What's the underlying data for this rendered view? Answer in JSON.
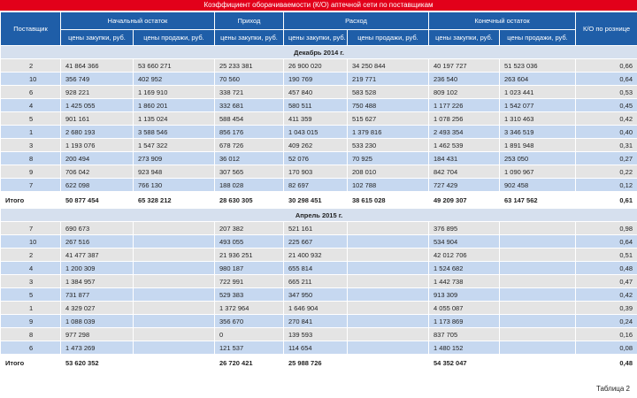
{
  "title": "Коэффициент оборачиваемости (К/О) аптечной сети по поставщикам",
  "header": {
    "groups": [
      "Поставщик",
      "Начальный остаток",
      "Приход",
      "Расход",
      "Конечный остаток",
      "К/О по рознице"
    ],
    "subheaders": [
      "цены закупки, руб.",
      "цены продажи, руб.",
      "цены закупки, руб.",
      "цены закупки, руб.",
      "цены продажи, руб.",
      "цены закупки, руб.",
      "цены продажи, руб."
    ]
  },
  "sections": [
    {
      "label": "Декабрь 2014 г.",
      "rows": [
        [
          "2",
          "41 864 366",
          "53 660 271",
          "25 233 381",
          "26 900 020",
          "34 250 844",
          "40 197 727",
          "51 523 036",
          "0,66"
        ],
        [
          "10",
          "356 749",
          "402 952",
          "70 560",
          "190 769",
          "219 771",
          "236 540",
          "263 604",
          "0,64"
        ],
        [
          "6",
          "928 221",
          "1 169 910",
          "338 721",
          "457 840",
          "583 528",
          "809 102",
          "1 023 441",
          "0,53"
        ],
        [
          "4",
          "1 425 055",
          "1 860 201",
          "332 681",
          "580 511",
          "750 488",
          "1 177 226",
          "1 542 077",
          "0,45"
        ],
        [
          "5",
          "901 161",
          "1 135 024",
          "588 454",
          "411 359",
          "515 627",
          "1 078 256",
          "1 310 463",
          "0,42"
        ],
        [
          "1",
          "2 680 193",
          "3 588 546",
          "856 176",
          "1 043 015",
          "1 379 816",
          "2 493 354",
          "3 346 519",
          "0,40"
        ],
        [
          "3",
          "1 193 076",
          "1 547 322",
          "678 726",
          "409 262",
          "533 230",
          "1 462 539",
          "1 891 948",
          "0,31"
        ],
        [
          "8",
          "200 494",
          "273 909",
          "36 012",
          "52 076",
          "70 925",
          "184 431",
          "253 050",
          "0,27"
        ],
        [
          "9",
          "706 042",
          "923 948",
          "307 565",
          "170 903",
          "208 010",
          "842 704",
          "1 090 967",
          "0,22"
        ],
        [
          "7",
          "622 098",
          "766 130",
          "188 028",
          "82 697",
          "102 788",
          "727 429",
          "902 458",
          "0,12"
        ],
        [
          "Итого",
          "50 877 454",
          "65 328 212",
          "28 630 305",
          "30 298 451",
          "38 615 028",
          "49 209 307",
          "63 147 562",
          "0,61"
        ]
      ]
    },
    {
      "label": "Апрель 2015 г.",
      "rows": [
        [
          "7",
          "690 673",
          null,
          "207 382",
          "521 161",
          null,
          "376 895",
          null,
          "0,98"
        ],
        [
          "10",
          "267 516",
          null,
          "493 055",
          "225 667",
          null,
          "534 904",
          null,
          "0,64"
        ],
        [
          "2",
          "41 477 387",
          null,
          "21 936 251",
          "21 400 932",
          null,
          "42 012 706",
          null,
          "0,51"
        ],
        [
          "4",
          "1 200 309",
          null,
          "980 187",
          "655 814",
          null,
          "1 524 682",
          null,
          "0,48"
        ],
        [
          "3",
          "1 384 957",
          null,
          "722 991",
          "665 211",
          null,
          "1 442 738",
          null,
          "0,47"
        ],
        [
          "5",
          "731 877",
          null,
          "529 383",
          "347 950",
          null,
          "913 309",
          null,
          "0,42"
        ],
        [
          "1",
          "4 329 027",
          null,
          "1 372 964",
          "1 646 904",
          null,
          "4 055 087",
          null,
          "0,39"
        ],
        [
          "9",
          "1 088 039",
          null,
          "356 670",
          "270 841",
          null,
          "1 173 869",
          null,
          "0,24"
        ],
        [
          "8",
          "977 298",
          null,
          "0",
          "139 593",
          null,
          "837 705",
          null,
          "0,16"
        ],
        [
          "6",
          "1 473 269",
          null,
          "121 537",
          "114 654",
          null,
          "1 480 152",
          null,
          "0,08"
        ],
        [
          "Итого",
          "53 620 352",
          null,
          "26 720 421",
          "25 988 726",
          null,
          "54 352 047",
          null,
          "0,48"
        ]
      ]
    }
  ],
  "footer": "Таблица 2"
}
